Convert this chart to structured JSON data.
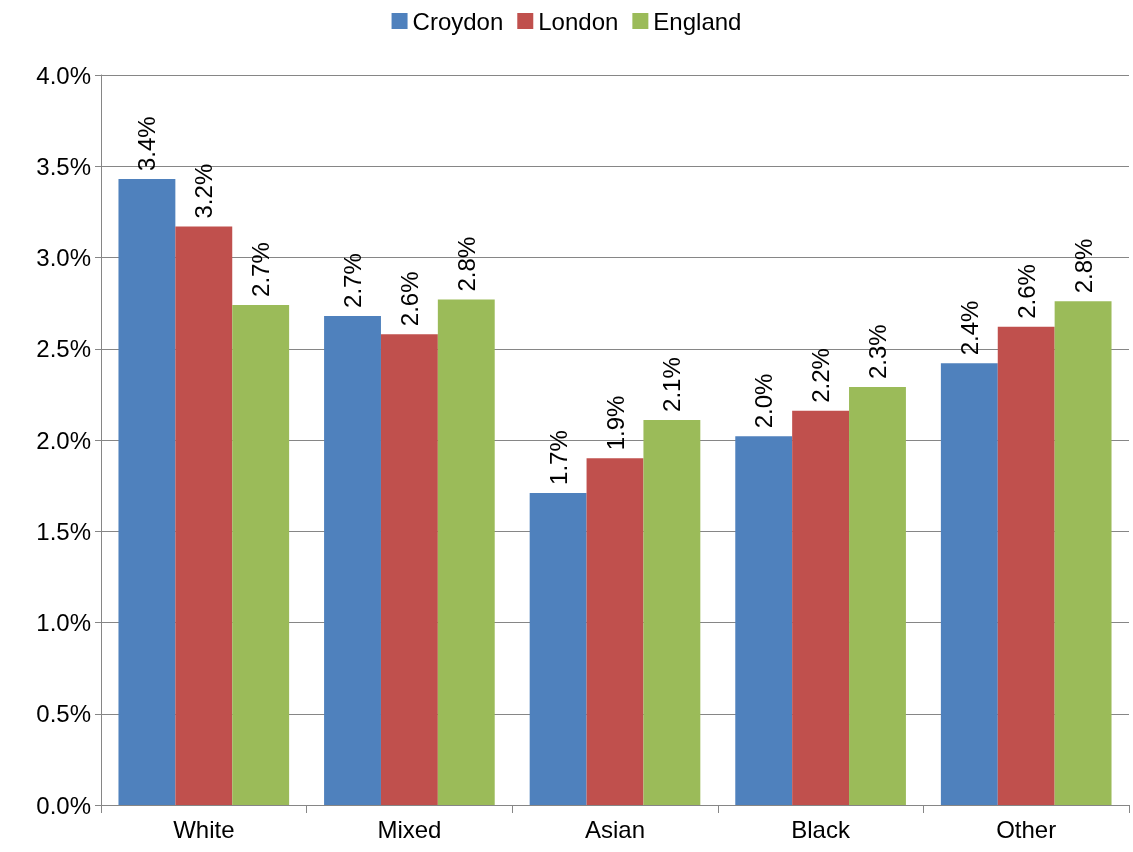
{
  "chart_data": {
    "type": "bar",
    "categories": [
      "White",
      "Mixed",
      "Asian",
      "Black",
      "Other"
    ],
    "series": [
      {
        "name": "Croydon",
        "color": "#4f81bd",
        "values": [
          3.43,
          2.68,
          1.71,
          2.02,
          2.42
        ],
        "value_labels": [
          "3.4%",
          "2.7%",
          "1.7%",
          "2.0%",
          "2.4%"
        ]
      },
      {
        "name": "London",
        "color": "#c0504d",
        "values": [
          3.17,
          2.58,
          1.9,
          2.16,
          2.62
        ],
        "value_labels": [
          "3.2%",
          "2.6%",
          "1.9%",
          "2.2%",
          "2.6%"
        ]
      },
      {
        "name": "England",
        "color": "#9bbb59",
        "values": [
          2.74,
          2.77,
          2.11,
          2.29,
          2.76
        ],
        "value_labels": [
          "2.7%",
          "2.8%",
          "2.1%",
          "2.3%",
          "2.8%"
        ]
      }
    ],
    "ylim": [
      0,
      4
    ],
    "yticks": [
      {
        "value": 0,
        "label": "0.0%"
      },
      {
        "value": 0.5,
        "label": "0.5%"
      },
      {
        "value": 1,
        "label": "1.0%"
      },
      {
        "value": 1.5,
        "label": "1.5%"
      },
      {
        "value": 2,
        "label": "2.0%"
      },
      {
        "value": 2.5,
        "label": "2.5%"
      },
      {
        "value": 3,
        "label": "3.0%"
      },
      {
        "value": 3.5,
        "label": "3.5%"
      },
      {
        "value": 4,
        "label": "4.0%"
      }
    ],
    "grid": "y",
    "legend": "top"
  }
}
